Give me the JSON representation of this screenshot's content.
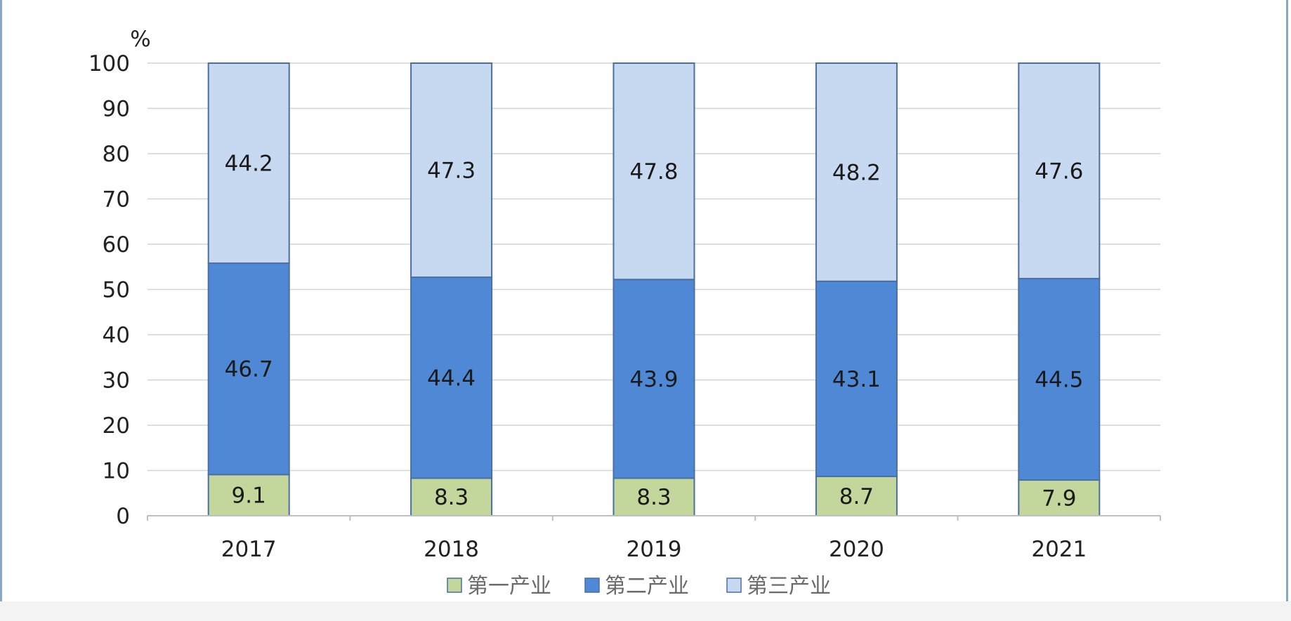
{
  "chart_data": {
    "type": "bar",
    "stacked": true,
    "y_unit": "%",
    "ylim": [
      0,
      100
    ],
    "y_ticks": [
      0,
      10,
      20,
      30,
      40,
      50,
      60,
      70,
      80,
      90,
      100
    ],
    "grid": true,
    "legend_position": "bottom",
    "categories": [
      "2017",
      "2018",
      "2019",
      "2020",
      "2021"
    ],
    "series": [
      {
        "name": "第一产业",
        "color": "#c3d69b",
        "values": [
          9.1,
          8.3,
          8.3,
          8.7,
          7.9
        ]
      },
      {
        "name": "第二产业",
        "color": "#4f88d4",
        "values": [
          46.7,
          44.4,
          43.9,
          43.1,
          44.5
        ]
      },
      {
        "name": "第三产业",
        "color": "#c6d9f1",
        "values": [
          44.2,
          47.3,
          47.8,
          48.2,
          47.6
        ]
      }
    ]
  }
}
